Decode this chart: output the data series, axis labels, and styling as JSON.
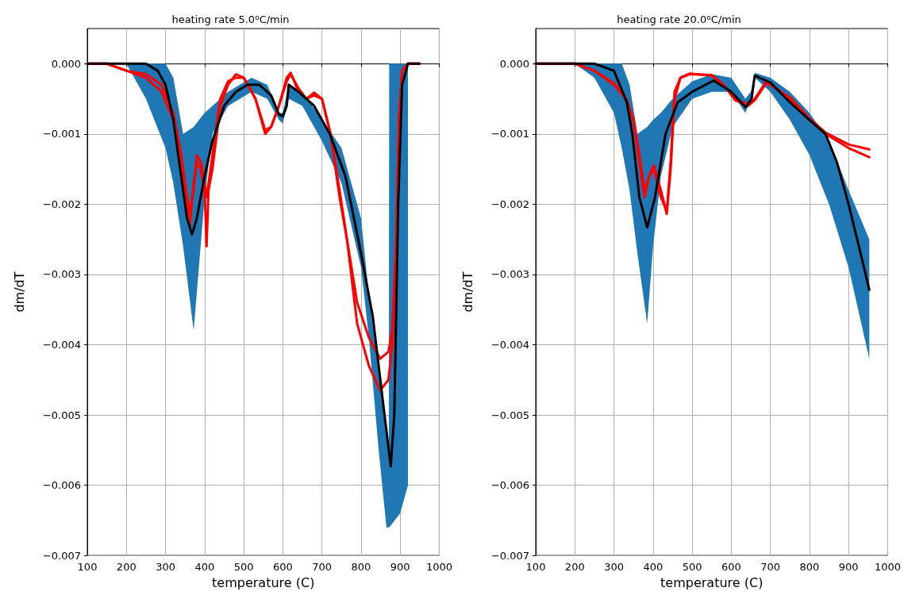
{
  "chart_data": [
    {
      "type": "line",
      "title": "heating rate 5.0$^{o}$C/min",
      "xlabel": "temperature (C)",
      "ylabel": "dm/dT",
      "xlim": [
        100,
        1000
      ],
      "xticks": [
        100,
        200,
        300,
        400,
        500,
        600,
        700,
        800,
        900,
        1000
      ],
      "ylim": [
        -0.007,
        0.0005
      ],
      "yticks": [
        {
          "value": -0.007,
          "label": "−0.007"
        },
        {
          "value": -0.006,
          "label": "−0.006"
        },
        {
          "value": -0.005,
          "label": "−0.005"
        },
        {
          "value": -0.004,
          "label": "−0.004"
        },
        {
          "value": -0.003,
          "label": "−0.003"
        },
        {
          "value": -0.002,
          "label": "−0.002"
        },
        {
          "value": -0.001,
          "label": "−0.001"
        },
        {
          "value": 0,
          "label": "0.000"
        }
      ],
      "grid": true,
      "line_style": "solid",
      "series": [
        {
          "color": "#1f77b4",
          "x": [
            100,
            200,
            250,
            300,
            320,
            345,
            372,
            400,
            420,
            460,
            520,
            560,
            590,
            600,
            615,
            650,
            700,
            750,
            800,
            820,
            845,
            865,
            871,
            872,
            900,
            920
          ],
          "values": [
            null,
            null,
            null,
            null,
            null,
            null,
            null,
            null,
            null,
            null,
            null,
            null,
            null,
            null,
            null,
            null,
            null,
            null,
            null,
            null,
            null,
            null,
            null,
            null,
            null,
            null
          ],
          "upper": [
            0,
            0,
            0,
            0,
            -0.0002,
            -0.001,
            -0.0009,
            -0.0007,
            -0.0006,
            -0.0004,
            -0.0002,
            -0.0003,
            -0.0007,
            -0.0007,
            -0.0003,
            -0.0004,
            -0.0008,
            -0.0012,
            -0.0022,
            -0.0033,
            -0.0044,
            -0.0052,
            -0.0056,
            0,
            0,
            0
          ],
          "lower": [
            0,
            0,
            -0.0005,
            -0.0012,
            -0.0017,
            -0.0026,
            -0.0038,
            -0.0019,
            -0.001,
            -0.0006,
            -0.0004,
            -0.0005,
            -0.0008,
            -0.00085,
            -0.0005,
            -0.0006,
            -0.0011,
            -0.0017,
            -0.0029,
            -0.0039,
            -0.0055,
            -0.0066,
            -0.0066,
            -0.0066,
            -0.0064,
            -0.006
          ]
        },
        {
          "color": "#ff0000",
          "x": [
            100,
            150,
            200,
            250,
            290,
            320,
            340,
            355,
            362,
            372,
            380,
            390,
            400,
            405,
            410,
            420,
            440,
            460,
            480,
            500,
            530,
            555,
            570,
            590,
            610,
            620,
            640,
            660,
            680,
            700,
            722,
            745,
            764,
            790,
            820,
            849,
            870,
            880,
            890,
            897,
            905,
            920,
            950
          ],
          "values": [
            0,
            0,
            -0.0001,
            -0.0002,
            -0.0004,
            -0.0008,
            -0.0015,
            -0.002,
            -0.0023,
            -0.0017,
            -0.0014,
            -0.0015,
            -0.0018,
            -0.0026,
            -0.0018,
            -0.0015,
            -0.0006,
            -0.0003,
            -0.00015,
            -0.0002,
            -0.0005,
            -0.001,
            -0.0009,
            -0.0006,
            -0.0002,
            -0.00013,
            -0.0004,
            -0.0005,
            -0.00041,
            -0.0005,
            -0.001,
            -0.0019,
            -0.0025,
            -0.0037,
            -0.0043,
            -0.00465,
            -0.0045,
            -0.004,
            -0.0025,
            -0.0008,
            -0.0001,
            0,
            0
          ]
        },
        {
          "color": "#ff0000",
          "x": [
            100,
            150,
            200,
            250,
            290,
            320,
            340,
            355,
            362,
            372,
            380,
            390,
            400,
            405,
            410,
            420,
            440,
            460,
            480,
            500,
            530,
            555,
            570,
            590,
            610,
            620,
            640,
            660,
            680,
            700,
            722,
            745,
            764,
            790,
            820,
            849,
            870,
            880,
            890,
            897,
            905,
            920,
            950
          ],
          "values": [
            0,
            0,
            -0.0001,
            -0.00015,
            -0.0003,
            -0.0007,
            -0.0013,
            -0.0019,
            -0.0021,
            -0.0018,
            -0.0013,
            -0.0014,
            -0.0017,
            -0.0019,
            -0.0017,
            -0.0013,
            -0.0005,
            -0.00025,
            -0.0002,
            -0.0002,
            -0.0005,
            -0.00095,
            -0.0009,
            -0.0006,
            -0.00025,
            -0.00015,
            -0.00035,
            -0.0005,
            -0.00045,
            -0.0005,
            -0.001,
            -0.0018,
            -0.0025,
            -0.0034,
            -0.0039,
            -0.0042,
            -0.0041,
            -0.0038,
            -0.0025,
            -0.0008,
            -0.0001,
            0,
            0
          ]
        },
        {
          "color": "#000000",
          "x": [
            100,
            200,
            250,
            280,
            300,
            320,
            340,
            355,
            368,
            380,
            400,
            420,
            450,
            480,
            510,
            540,
            570,
            590,
            600,
            610,
            615,
            640,
            680,
            720,
            760,
            800,
            830,
            860,
            876,
            885,
            895,
            905,
            920,
            950
          ],
          "values": [
            0,
            0,
            0,
            -0.0001,
            -0.0003,
            -0.0008,
            -0.0016,
            -0.0022,
            -0.00243,
            -0.0022,
            -0.0016,
            -0.0011,
            -0.0006,
            -0.0004,
            -0.0003,
            -0.0003,
            -0.00045,
            -0.00072,
            -0.00075,
            -0.0006,
            -0.0003,
            -0.0004,
            -0.0006,
            -0.001,
            -0.0016,
            -0.0027,
            -0.0036,
            -0.005,
            -0.00573,
            -0.005,
            -0.002,
            -0.0003,
            0,
            0
          ]
        }
      ]
    },
    {
      "type": "line",
      "title": "heating rate 20.0$^{o}$C/min",
      "xlabel": "temperature (C)",
      "ylabel": "dm/dT",
      "xlim": [
        100,
        1000
      ],
      "xticks": [
        100,
        200,
        300,
        400,
        500,
        600,
        700,
        800,
        900,
        1000
      ],
      "ylim": [
        -0.007,
        0.0005
      ],
      "yticks": [
        {
          "value": -0.007,
          "label": "−0.007"
        },
        {
          "value": -0.006,
          "label": "−0.006"
        },
        {
          "value": -0.005,
          "label": "−0.005"
        },
        {
          "value": -0.004,
          "label": "−0.004"
        },
        {
          "value": -0.003,
          "label": "−0.003"
        },
        {
          "value": -0.002,
          "label": "−0.002"
        },
        {
          "value": -0.001,
          "label": "−0.001"
        },
        {
          "value": 0,
          "label": "0.000"
        }
      ],
      "grid": true,
      "line_style": "solid",
      "series": [
        {
          "color": "#1f77b4",
          "x": [
            100,
            200,
            250,
            300,
            320,
            340,
            360,
            385,
            400,
            420,
            450,
            500,
            550,
            600,
            636,
            650,
            660,
            700,
            750,
            800,
            850,
            900,
            953
          ],
          "values": [
            null,
            null,
            null,
            null,
            null,
            null,
            null,
            null,
            null,
            null,
            null,
            null,
            null,
            null,
            null,
            null,
            null,
            null,
            null,
            null,
            null,
            null,
            null
          ],
          "upper": [
            0,
            0,
            0,
            0,
            0,
            -0.0003,
            -0.001,
            -0.0009,
            -0.0008,
            -0.0007,
            -0.0005,
            -0.00025,
            -0.00015,
            -0.0002,
            -0.0005,
            -0.0004,
            -0.00013,
            -0.0002,
            -0.0004,
            -0.0007,
            -0.0011,
            -0.0018,
            -0.0025
          ],
          "lower": [
            0,
            0,
            -0.0002,
            -0.0007,
            -0.0012,
            -0.0018,
            -0.0027,
            -0.0037,
            -0.0026,
            -0.0016,
            -0.0009,
            -0.0005,
            -0.0004,
            -0.0004,
            -0.0007,
            -0.0005,
            -0.0002,
            -0.0004,
            -0.0008,
            -0.0013,
            -0.002,
            -0.0029,
            -0.0042
          ]
        },
        {
          "color": "#ff0000",
          "x": [
            100,
            200,
            250,
            300,
            330,
            350,
            365,
            378,
            390,
            402,
            420,
            435,
            445,
            455,
            470,
            494,
            550,
            580,
            610,
            643,
            660,
            690,
            750,
            800,
            841,
            900,
            953
          ],
          "values": [
            0,
            0,
            -0.0001,
            -0.0003,
            -0.0005,
            -0.0008,
            -0.0014,
            -0.0019,
            -0.0016,
            -0.00145,
            -0.0018,
            -0.00214,
            -0.0015,
            -0.0005,
            -0.0002,
            -0.00014,
            -0.00017,
            -0.0003,
            -0.0005,
            -0.00058,
            -0.0005,
            -0.00025,
            -0.0005,
            -0.0008,
            -0.001,
            -0.0012,
            -0.00133
          ]
        },
        {
          "color": "#ff0000",
          "x": [
            100,
            200,
            250,
            300,
            330,
            350,
            365,
            378,
            390,
            402,
            420,
            435,
            445,
            455,
            470,
            494,
            550,
            580,
            610,
            643,
            660,
            690,
            750,
            800,
            841,
            900,
            953
          ],
          "values": [
            0,
            0,
            -0.0001,
            -0.00028,
            -0.00048,
            -0.0008,
            -0.0013,
            -0.0018,
            -0.0016,
            -0.0015,
            -0.0019,
            -0.0021,
            -0.0014,
            -0.0004,
            -0.0002,
            -0.00015,
            -0.00016,
            -0.0003,
            -0.00052,
            -0.0006,
            -0.00052,
            -0.00027,
            -0.00048,
            -0.00078,
            -0.00098,
            -0.00115,
            -0.00122
          ]
        },
        {
          "color": "#000000",
          "x": [
            100,
            250,
            300,
            333,
            347,
            365,
            385,
            405,
            432,
            463,
            500,
            555,
            600,
            637,
            652,
            660,
            700,
            750,
            800,
            841,
            870,
            900,
            935,
            953
          ],
          "values": [
            0,
            0,
            -0.0001,
            -0.00055,
            -0.001,
            -0.0019,
            -0.00233,
            -0.0019,
            -0.001,
            -0.00055,
            -0.0004,
            -0.00024,
            -0.0004,
            -0.00062,
            -0.0005,
            -0.00017,
            -0.00027,
            -0.00055,
            -0.0008,
            -0.001,
            -0.0014,
            -0.002,
            -0.0028,
            -0.00322
          ]
        }
      ]
    }
  ]
}
